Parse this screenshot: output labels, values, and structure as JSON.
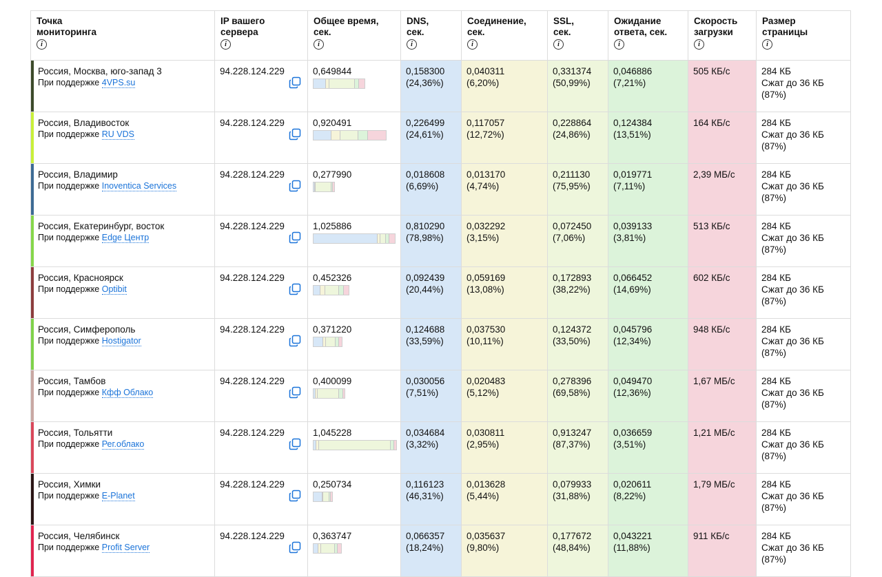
{
  "headers": [
    {
      "key": "location",
      "label": "Точка мониторинга",
      "lines": [
        "Точка",
        "мониторинга"
      ]
    },
    {
      "key": "ip",
      "label": "IP вашего сервера",
      "lines": [
        "IP вашего",
        "сервера"
      ]
    },
    {
      "key": "total",
      "label": "Общее время, сек.",
      "lines": [
        "Общее время,",
        "сек."
      ]
    },
    {
      "key": "dns",
      "label": "DNS, сек.",
      "lines": [
        "DNS,",
        "сек."
      ]
    },
    {
      "key": "conn",
      "label": "Соединение, сек.",
      "lines": [
        "Соединение,",
        "сек."
      ]
    },
    {
      "key": "ssl",
      "label": "SSL, сек.",
      "lines": [
        "SSL,",
        "сек."
      ]
    },
    {
      "key": "wait",
      "label": "Ожидание ответа, сек.",
      "lines": [
        "Ожидание",
        "ответа, сек."
      ]
    },
    {
      "key": "speed",
      "label": "Скорость загрузки",
      "lines": [
        "Скорость",
        "загрузки"
      ]
    },
    {
      "key": "size",
      "label": "Размер страницы",
      "lines": [
        "Размер",
        "страницы"
      ]
    }
  ],
  "info_icon_glyph": "i",
  "support_prefix": "При поддержке",
  "colors": {
    "dns": "#d7e7f7",
    "connection": "#f6f4d9",
    "ssl": "#eef6dc",
    "wait": "#dcf3da",
    "speed": "#f6d5dc",
    "link": "#1a73d9"
  },
  "rows": [
    {
      "location": "Россия, Москва, юго-запад 3",
      "provider": "4VPS.su",
      "stripe": "#3c4a2a",
      "ip": "94.228.124.229",
      "total": "0,649844",
      "dns": "0,158300",
      "dns_pct": "(24,36%)",
      "conn": "0,040311",
      "conn_pct": "(6,20%)",
      "ssl": "0,331374",
      "ssl_pct": "(50,99%)",
      "wait": "0,046886",
      "wait_pct": "(7,21%)",
      "speed": "505 КБ/с",
      "size": "284 КБ",
      "compressed": "Сжат до 36 КБ",
      "compressed_pct": "(87%)"
    },
    {
      "location": "Россия, Владивосток",
      "provider": "RU VDS",
      "stripe": "#c9ef3a",
      "ip": "94.228.124.229",
      "total": "0,920491",
      "dns": "0,226499",
      "dns_pct": "(24,61%)",
      "conn": "0,117057",
      "conn_pct": "(12,72%)",
      "ssl": "0,228864",
      "ssl_pct": "(24,86%)",
      "wait": "0,124384",
      "wait_pct": "(13,51%)",
      "speed": "164 КБ/с",
      "size": "284 КБ",
      "compressed": "Сжат до 36 КБ",
      "compressed_pct": "(87%)"
    },
    {
      "location": "Россия, Владимир",
      "provider": "Inoventica Services",
      "stripe": "#3d6b94",
      "ip": "94.228.124.229",
      "total": "0,277990",
      "dns": "0,018608",
      "dns_pct": "(6,69%)",
      "conn": "0,013170",
      "conn_pct": "(4,74%)",
      "ssl": "0,211130",
      "ssl_pct": "(75,95%)",
      "wait": "0,019771",
      "wait_pct": "(7,11%)",
      "speed": "2,39 МБ/с",
      "size": "284 КБ",
      "compressed": "Сжат до 36 КБ",
      "compressed_pct": "(87%)"
    },
    {
      "location": "Россия, Екатеринбург, восток",
      "provider": "Edge Центр",
      "stripe": "#86d64a",
      "ip": "94.228.124.229",
      "total": "1,025886",
      "dns": "0,810290",
      "dns_pct": "(78,98%)",
      "conn": "0,032292",
      "conn_pct": "(3,15%)",
      "ssl": "0,072450",
      "ssl_pct": "(7,06%)",
      "wait": "0,039133",
      "wait_pct": "(3,81%)",
      "speed": "513 КБ/с",
      "size": "284 КБ",
      "compressed": "Сжат до 36 КБ",
      "compressed_pct": "(87%)"
    },
    {
      "location": "Россия, Красноярск",
      "provider": "Optibit",
      "stripe": "#8c3d3d",
      "ip": "94.228.124.229",
      "total": "0,452326",
      "dns": "0,092439",
      "dns_pct": "(20,44%)",
      "conn": "0,059169",
      "conn_pct": "(13,08%)",
      "ssl": "0,172893",
      "ssl_pct": "(38,22%)",
      "wait": "0,066452",
      "wait_pct": "(14,69%)",
      "speed": "602 КБ/с",
      "size": "284 КБ",
      "compressed": "Сжат до 36 КБ",
      "compressed_pct": "(87%)"
    },
    {
      "location": "Россия, Симферополь",
      "provider": "Hostigator",
      "stripe": "#7fd24a",
      "ip": "94.228.124.229",
      "total": "0,371220",
      "dns": "0,124688",
      "dns_pct": "(33,59%)",
      "conn": "0,037530",
      "conn_pct": "(10,11%)",
      "ssl": "0,124372",
      "ssl_pct": "(33,50%)",
      "wait": "0,045796",
      "wait_pct": "(12,34%)",
      "speed": "948 КБ/с",
      "size": "284 КБ",
      "compressed": "Сжат до 36 КБ",
      "compressed_pct": "(87%)"
    },
    {
      "location": "Россия, Тамбов",
      "provider": "Кфф Облако",
      "stripe": "#c9a8a3",
      "ip": "94.228.124.229",
      "total": "0,400099",
      "dns": "0,030056",
      "dns_pct": "(7,51%)",
      "conn": "0,020483",
      "conn_pct": "(5,12%)",
      "ssl": "0,278396",
      "ssl_pct": "(69,58%)",
      "wait": "0,049470",
      "wait_pct": "(12,36%)",
      "speed": "1,67 МБ/с",
      "size": "284 КБ",
      "compressed": "Сжат до 36 КБ",
      "compressed_pct": "(87%)"
    },
    {
      "location": "Россия, Тольятти",
      "provider": "Рег.облако",
      "stripe": "#d9475a",
      "ip": "94.228.124.229",
      "total": "1,045228",
      "dns": "0,034684",
      "dns_pct": "(3,32%)",
      "conn": "0,030811",
      "conn_pct": "(2,95%)",
      "ssl": "0,913247",
      "ssl_pct": "(87,37%)",
      "wait": "0,036659",
      "wait_pct": "(3,51%)",
      "speed": "1,21 МБ/с",
      "size": "284 КБ",
      "compressed": "Сжат до 36 КБ",
      "compressed_pct": "(87%)"
    },
    {
      "location": "Россия, Химки",
      "provider": "E-Planet",
      "stripe": "#2a1414",
      "ip": "94.228.124.229",
      "total": "0,250734",
      "dns": "0,116123",
      "dns_pct": "(46,31%)",
      "conn": "0,013628",
      "conn_pct": "(5,44%)",
      "ssl": "0,079933",
      "ssl_pct": "(31,88%)",
      "wait": "0,020611",
      "wait_pct": "(8,22%)",
      "speed": "1,79 МБ/с",
      "size": "284 КБ",
      "compressed": "Сжат до 36 КБ",
      "compressed_pct": "(87%)"
    },
    {
      "location": "Россия, Челябинск",
      "provider": "Profit Server",
      "stripe": "#e0244f",
      "ip": "94.228.124.229",
      "total": "0,363747",
      "dns": "0,066357",
      "dns_pct": "(18,24%)",
      "conn": "0,035637",
      "conn_pct": "(9,80%)",
      "ssl": "0,177672",
      "ssl_pct": "(48,84%)",
      "wait": "0,043221",
      "wait_pct": "(11,88%)",
      "speed": "911 КБ/с",
      "size": "284 КБ",
      "compressed": "Сжат до 36 КБ",
      "compressed_pct": "(87%)"
    }
  ]
}
